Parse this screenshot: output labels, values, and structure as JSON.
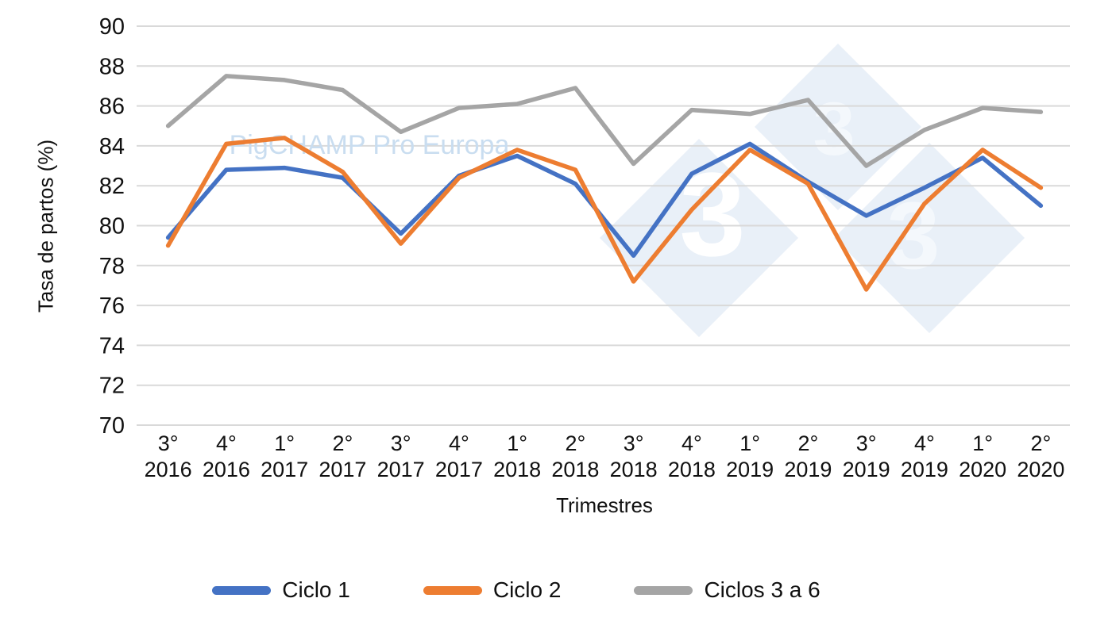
{
  "chart_data": {
    "type": "line",
    "title": "",
    "xlabel": "Trimestres",
    "ylabel": "Tasa de partos (%)",
    "ylim": [
      70,
      90
    ],
    "yticks": [
      90,
      88,
      86,
      84,
      82,
      80,
      78,
      76,
      74,
      72,
      70
    ],
    "grid": true,
    "legend_position": "bottom",
    "categories": [
      {
        "quarter": "3°",
        "year": "2016"
      },
      {
        "quarter": "4°",
        "year": "2016"
      },
      {
        "quarter": "1°",
        "year": "2017"
      },
      {
        "quarter": "2°",
        "year": "2017"
      },
      {
        "quarter": "3°",
        "year": "2017"
      },
      {
        "quarter": "4°",
        "year": "2017"
      },
      {
        "quarter": "1°",
        "year": "2018"
      },
      {
        "quarter": "2°",
        "year": "2018"
      },
      {
        "quarter": "3°",
        "year": "2018"
      },
      {
        "quarter": "4°",
        "year": "2018"
      },
      {
        "quarter": "1°",
        "year": "2019"
      },
      {
        "quarter": "2°",
        "year": "2019"
      },
      {
        "quarter": "3°",
        "year": "2019"
      },
      {
        "quarter": "4°",
        "year": "2019"
      },
      {
        "quarter": "1°",
        "year": "2020"
      },
      {
        "quarter": "2°",
        "year": "2020"
      }
    ],
    "series": [
      {
        "name": "Ciclo 1",
        "color": "#4472C4",
        "values": [
          79.4,
          82.8,
          82.9,
          82.4,
          79.6,
          82.5,
          83.5,
          82.1,
          78.5,
          82.6,
          84.1,
          82.2,
          80.5,
          81.9,
          83.4,
          81.0
        ]
      },
      {
        "name": "Ciclo 2",
        "color": "#ED7D31",
        "values": [
          79.0,
          84.1,
          84.4,
          82.7,
          79.1,
          82.4,
          83.8,
          82.8,
          77.2,
          80.8,
          83.8,
          82.1,
          76.8,
          81.1,
          83.8,
          81.9
        ]
      },
      {
        "name": "Ciclos 3 a 6",
        "color": "#A5A5A5",
        "values": [
          85.0,
          87.5,
          87.3,
          86.8,
          84.7,
          85.9,
          86.1,
          86.9,
          83.1,
          85.8,
          85.6,
          86.3,
          83.0,
          84.8,
          85.9,
          85.7
        ]
      }
    ]
  },
  "watermark": {
    "text": "PigCHAMP Pro Europa",
    "color": "#C9DDF0",
    "logo_glyph": "3",
    "diamond_fill": "#E9F0F8"
  },
  "colors": {
    "gridline": "#D9D9D9",
    "axis_text": "#111111",
    "background": "#FFFFFF"
  }
}
